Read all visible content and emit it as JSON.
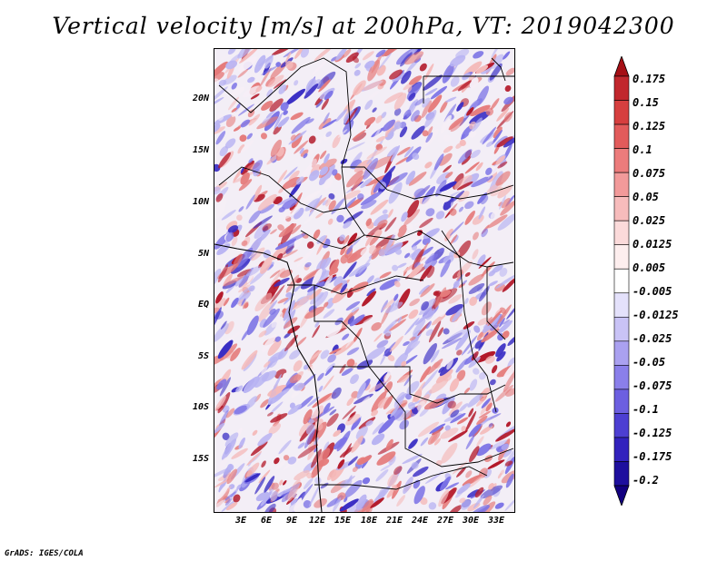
{
  "title": "Vertical velocity [m/s] at 200hPa, VT: 2019042300",
  "footer": "GrADS: IGES/COLA",
  "map": {
    "lat_labels": [
      "20N",
      "15N",
      "10N",
      "5N",
      "EQ",
      "5S",
      "10S",
      "15S"
    ],
    "lon_labels": [
      "3E",
      "6E",
      "9E",
      "12E",
      "15E",
      "18E",
      "21E",
      "24E",
      "27E",
      "30E",
      "33E"
    ],
    "field_colors": {
      "strong_up": "#b3192a",
      "up": "#e57b7b",
      "weak_up": "#f4b9b9",
      "neutral": "#f6eef6",
      "weak_down": "#b8b3f2",
      "down": "#7c73e6",
      "strong_down": "#3a2ec4"
    }
  },
  "colorbar": {
    "labels": [
      "0.175",
      "0.15",
      "0.125",
      "0.1",
      "0.075",
      "0.05",
      "0.025",
      "0.0125",
      "0.005",
      "-0.005",
      "-0.0125",
      "-0.025",
      "-0.05",
      "-0.075",
      "-0.1",
      "-0.125",
      "-0.175",
      "-0.2"
    ],
    "colors": [
      "#a50f15",
      "#c1272d",
      "#d63f3f",
      "#e25b5b",
      "#ec7c7c",
      "#f29a9a",
      "#f7bcbc",
      "#fbdada",
      "#fdeeee",
      "#ffffff",
      "#e4e1fb",
      "#c9c3f6",
      "#aaa1f0",
      "#8a7fea",
      "#6c5fe0",
      "#4d3fd2",
      "#3222bd",
      "#1e0f9e",
      "#120080"
    ]
  }
}
